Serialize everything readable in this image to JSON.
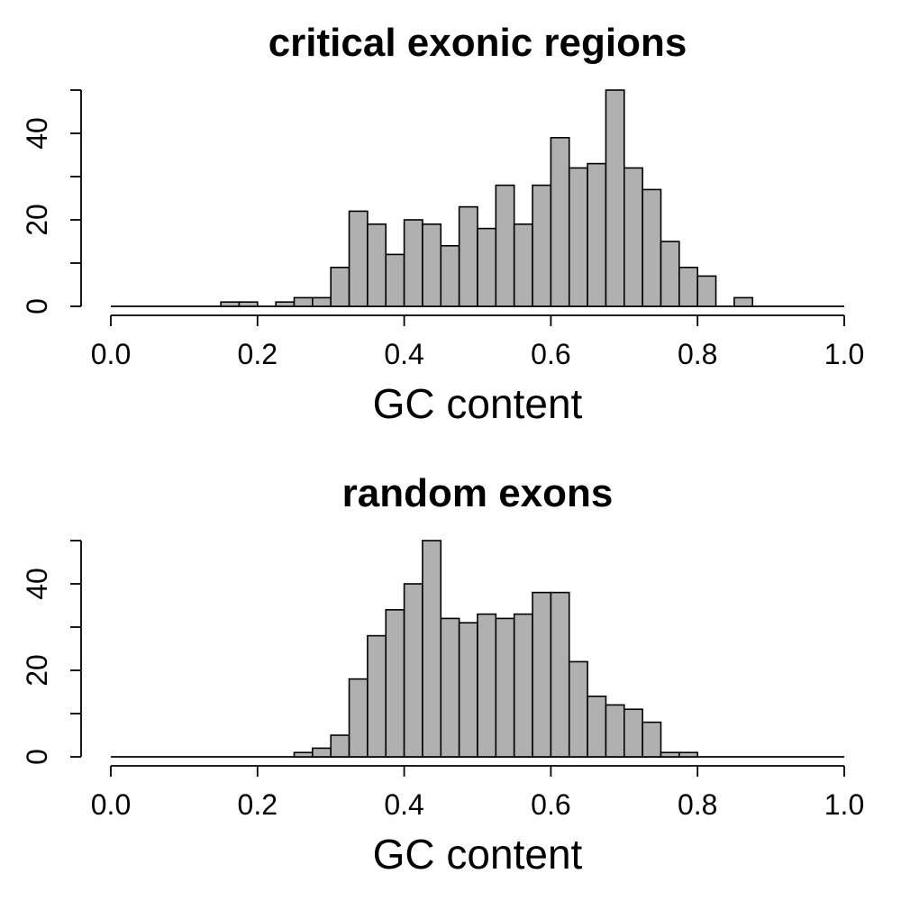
{
  "chart_data": [
    {
      "type": "bar",
      "title": "critical exonic regions",
      "xlabel": "GC content",
      "ylabel": "",
      "xlim": [
        0,
        1
      ],
      "ylim": [
        0,
        50
      ],
      "xticks": [
        "0.0",
        "0.2",
        "0.4",
        "0.6",
        "0.8",
        "1.0"
      ],
      "yticks": [
        "0",
        "20",
        "40"
      ],
      "bin_width": 0.025,
      "bin_start": 0,
      "values": [
        0,
        0,
        0,
        0,
        0,
        0,
        1,
        1,
        0,
        1,
        2,
        2,
        9,
        22,
        19,
        12,
        20,
        19,
        14,
        23,
        18,
        28,
        19,
        28,
        39,
        32,
        33,
        50,
        32,
        27,
        15,
        9,
        7,
        0,
        2,
        0,
        0,
        0,
        0,
        0
      ]
    },
    {
      "type": "bar",
      "title": "random exons",
      "xlabel": "GC content",
      "ylabel": "",
      "xlim": [
        0,
        1
      ],
      "ylim": [
        0,
        50
      ],
      "xticks": [
        "0.0",
        "0.2",
        "0.4",
        "0.6",
        "0.8",
        "1.0"
      ],
      "yticks": [
        "0",
        "20",
        "40"
      ],
      "bin_width": 0.025,
      "bin_start": 0,
      "values": [
        0,
        0,
        0,
        0,
        0,
        0,
        0,
        0,
        0,
        0,
        1,
        2,
        5,
        18,
        28,
        34,
        40,
        50,
        32,
        31,
        33,
        32,
        33,
        38,
        38,
        22,
        14,
        12,
        11,
        8,
        1,
        1,
        0,
        0,
        0,
        0,
        0,
        0,
        0,
        0
      ]
    }
  ]
}
